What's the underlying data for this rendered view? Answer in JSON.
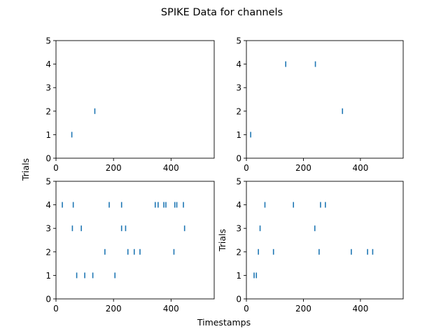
{
  "figure": {
    "title": "SPIKE Data for channels",
    "xlabel": "Timestamps",
    "ylabel_left": "Trials",
    "ylabel_right": "Trials"
  },
  "colors": {
    "marker": "#1f77b4",
    "axis": "#000000",
    "background": "#ffffff"
  },
  "chart_data": [
    {
      "type": "scatter",
      "marker": "vertical-tick",
      "xlim": [
        0,
        550
      ],
      "ylim": [
        0,
        5
      ],
      "xticks": [
        0,
        200,
        400
      ],
      "yticks": [
        0,
        1,
        2,
        3,
        4,
        5
      ],
      "series": [
        {
          "x": [
            55,
            135
          ],
          "y": [
            1,
            2
          ]
        }
      ]
    },
    {
      "type": "scatter",
      "marker": "vertical-tick",
      "xlim": [
        0,
        550
      ],
      "ylim": [
        0,
        5
      ],
      "xticks": [
        0,
        200,
        400
      ],
      "yticks": [
        0,
        1,
        2,
        3,
        4,
        5
      ],
      "series": [
        {
          "x": [
            15,
            138,
            242,
            337
          ],
          "y": [
            1,
            4,
            4,
            2
          ]
        }
      ]
    },
    {
      "type": "scatter",
      "marker": "vertical-tick",
      "xlim": [
        0,
        550
      ],
      "ylim": [
        0,
        5
      ],
      "xticks": [
        0,
        200,
        400
      ],
      "yticks": [
        0,
        1,
        2,
        3,
        4,
        5
      ],
      "series": [
        {
          "x": [
            72,
            100,
            128,
            205,
            170,
            250,
            272,
            292,
            410,
            57,
            88,
            228,
            242,
            447,
            22,
            60,
            185,
            228,
            345,
            355,
            375,
            382,
            413,
            420,
            443
          ],
          "y": [
            1,
            1,
            1,
            1,
            2,
            2,
            2,
            2,
            2,
            3,
            3,
            3,
            3,
            3,
            4,
            4,
            4,
            4,
            4,
            4,
            4,
            4,
            4,
            4,
            4
          ]
        }
      ]
    },
    {
      "type": "scatter",
      "marker": "vertical-tick",
      "xlim": [
        0,
        550
      ],
      "ylim": [
        0,
        5
      ],
      "xticks": [
        0,
        200,
        400
      ],
      "yticks": [
        0,
        1,
        2,
        3,
        4,
        5
      ],
      "series": [
        {
          "x": [
            27,
            35,
            42,
            95,
            255,
            368,
            425,
            443,
            48,
            240,
            65,
            165,
            260,
            277
          ],
          "y": [
            1,
            1,
            2,
            2,
            2,
            2,
            2,
            2,
            3,
            3,
            4,
            4,
            4,
            4
          ]
        }
      ]
    }
  ]
}
